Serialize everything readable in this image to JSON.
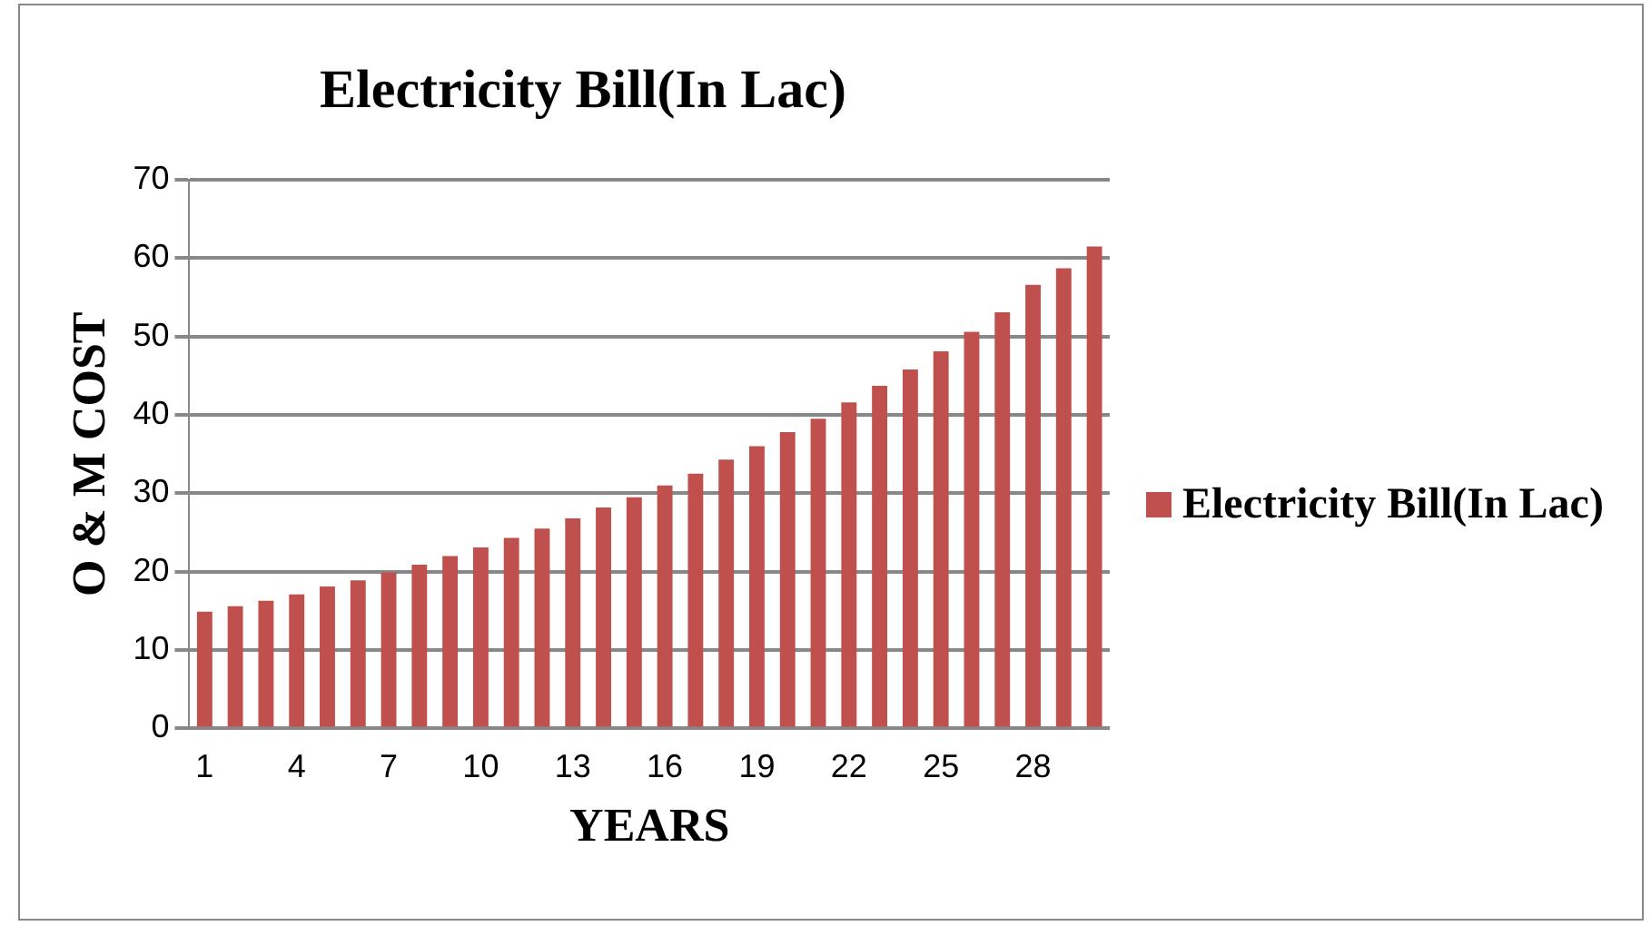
{
  "chart_data": {
    "type": "bar",
    "title": "Electricity Bill(In Lac)",
    "xlabel": "YEARS",
    "ylabel": "O & M COST",
    "categories": [
      "1",
      null,
      null,
      "4",
      null,
      null,
      "7",
      null,
      null,
      "10",
      null,
      null,
      "13",
      null,
      null,
      "16",
      null,
      null,
      "19",
      null,
      null,
      "22",
      null,
      null,
      "25",
      null,
      null,
      "28",
      null,
      null
    ],
    "series": [
      {
        "name": "Electricity Bill(In Lac)",
        "color": "#c0504d",
        "values": [
          14.9,
          15.6,
          16.3,
          17.1,
          18.1,
          18.9,
          19.9,
          20.9,
          22.0,
          23.1,
          24.3,
          25.5,
          26.8,
          28.2,
          29.5,
          31.0,
          32.5,
          34.3,
          36.0,
          37.8,
          39.5,
          41.6,
          43.7,
          45.8,
          48.1,
          50.6,
          53.1,
          56.6,
          58.7,
          61.5
        ]
      }
    ],
    "ylim": [
      0,
      70
    ],
    "yticks": [
      0,
      10,
      20,
      30,
      40,
      50,
      60,
      70
    ],
    "grid": "y",
    "legend": "right"
  }
}
